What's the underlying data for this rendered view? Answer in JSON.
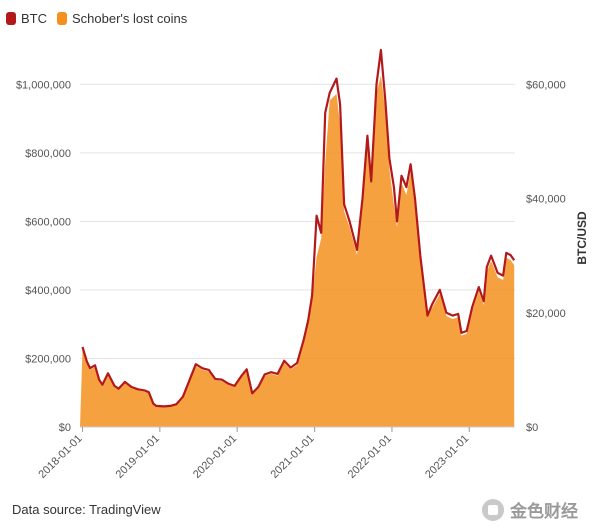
{
  "legend": [
    {
      "label": "BTC",
      "color": "#b3191b"
    },
    {
      "label": "Schober's lost coins",
      "color": "#f5901e"
    }
  ],
  "source": "Data source: TradingView",
  "watermark": "金色财经",
  "chart_data": {
    "type": "area",
    "left_axis": {
      "min": 0,
      "max": 1100000,
      "ticks": [
        "$0",
        "$200,000",
        "$400,000",
        "$600,000",
        "$800,000",
        "$1,000,000"
      ]
    },
    "right_axis": {
      "label": "BTC/USD",
      "min": 0,
      "max": 66000,
      "ticks": [
        "$0",
        "$20,000",
        "$40,000",
        "$60,000"
      ]
    },
    "x_ticks": [
      "2018-01-01",
      "2019-01-01",
      "2020-01-01",
      "2021-01-01",
      "2022-01-01",
      "2023-01-01"
    ],
    "grid": true,
    "legend_position": "top-left",
    "series": [
      {
        "name": "BTC",
        "color": "#b3191b",
        "axis": "right",
        "x": [
          "2018-01-01",
          "2018-01-21",
          "2018-02-05",
          "2018-03-01",
          "2018-03-20",
          "2018-04-05",
          "2018-05-01",
          "2018-06-01",
          "2018-06-20",
          "2018-07-20",
          "2018-08-20",
          "2018-09-20",
          "2018-10-20",
          "2018-11-10",
          "2018-12-01",
          "2018-12-15",
          "2019-01-20",
          "2019-02-20",
          "2019-03-20",
          "2019-04-20",
          "2019-05-20",
          "2019-06-20",
          "2019-07-20",
          "2019-08-20",
          "2019-09-20",
          "2019-10-20",
          "2019-11-20",
          "2019-12-20",
          "2020-01-20",
          "2020-02-15",
          "2020-03-12",
          "2020-04-10",
          "2020-05-10",
          "2020-06-10",
          "2020-07-10",
          "2020-08-10",
          "2020-09-10",
          "2020-10-10",
          "2020-11-10",
          "2020-12-01",
          "2020-12-20",
          "2021-01-10",
          "2021-02-01",
          "2021-02-20",
          "2021-03-13",
          "2021-04-14",
          "2021-05-01",
          "2021-05-20",
          "2021-06-15",
          "2021-07-20",
          "2021-08-15",
          "2021-09-07",
          "2021-09-25",
          "2021-10-20",
          "2021-11-10",
          "2021-12-01",
          "2021-12-20",
          "2022-01-10",
          "2022-01-25",
          "2022-02-15",
          "2022-03-10",
          "2022-03-30",
          "2022-04-20",
          "2022-05-15",
          "2022-06-18",
          "2022-07-10",
          "2022-08-15",
          "2022-09-15",
          "2022-10-15",
          "2022-11-10",
          "2022-11-25",
          "2022-12-20",
          "2023-01-15",
          "2023-02-15",
          "2023-03-10",
          "2023-03-25",
          "2023-04-14",
          "2023-05-15",
          "2023-06-10",
          "2023-06-25",
          "2023-07-15",
          "2023-08-01"
        ],
        "values": [
          14000,
          11500,
          10300,
          10800,
          8300,
          7400,
          9400,
          7200,
          6700,
          7900,
          7000,
          6600,
          6400,
          6100,
          4100,
          3700,
          3600,
          3700,
          4000,
          5300,
          8100,
          11000,
          10300,
          10000,
          8400,
          8300,
          7600,
          7200,
          8900,
          10100,
          5900,
          7000,
          9200,
          9600,
          9300,
          11600,
          10400,
          11200,
          15200,
          18600,
          23000,
          37000,
          34000,
          55000,
          58500,
          61000,
          56500,
          39000,
          36000,
          31000,
          40000,
          51000,
          43000,
          60000,
          66000,
          57000,
          47000,
          42000,
          36000,
          44000,
          42000,
          46000,
          40000,
          30000,
          19500,
          21500,
          24000,
          20000,
          19500,
          19800,
          16500,
          16800,
          21000,
          24500,
          22000,
          28000,
          30000,
          27000,
          26500,
          30500,
          30100,
          29200
        ]
      },
      {
        "name": "Schober's lost coins",
        "color": "#f5901e",
        "axis": "left",
        "x": [
          "2018-01-01",
          "2018-01-21",
          "2018-02-05",
          "2018-03-01",
          "2018-03-20",
          "2018-04-05",
          "2018-05-01",
          "2018-06-01",
          "2018-06-20",
          "2018-07-20",
          "2018-08-20",
          "2018-09-20",
          "2018-10-20",
          "2018-11-10",
          "2018-12-01",
          "2018-12-15",
          "2019-01-20",
          "2019-02-20",
          "2019-03-20",
          "2019-04-20",
          "2019-05-20",
          "2019-06-20",
          "2019-07-20",
          "2019-08-20",
          "2019-09-20",
          "2019-10-20",
          "2019-11-20",
          "2019-12-20",
          "2020-01-20",
          "2020-02-15",
          "2020-03-12",
          "2020-04-10",
          "2020-05-10",
          "2020-06-10",
          "2020-07-10",
          "2020-08-10",
          "2020-09-10",
          "2020-10-10",
          "2020-11-10",
          "2020-12-01",
          "2020-12-20",
          "2021-01-10",
          "2021-02-01",
          "2021-02-20",
          "2021-03-13",
          "2021-04-14",
          "2021-05-01",
          "2021-05-20",
          "2021-06-15",
          "2021-07-20",
          "2021-08-15",
          "2021-09-07",
          "2021-09-25",
          "2021-10-20",
          "2021-11-10",
          "2021-12-01",
          "2021-12-20",
          "2022-01-10",
          "2022-01-25",
          "2022-02-15",
          "2022-03-10",
          "2022-03-30",
          "2022-04-20",
          "2022-05-15",
          "2022-06-18",
          "2022-07-10",
          "2022-08-15",
          "2022-09-15",
          "2022-10-15",
          "2022-11-10",
          "2022-11-25",
          "2022-12-20",
          "2023-01-15",
          "2023-02-15",
          "2023-03-10",
          "2023-03-25",
          "2023-04-14",
          "2023-05-15",
          "2023-06-10",
          "2023-06-25",
          "2023-07-15",
          "2023-08-01"
        ],
        "values": [
          227000,
          186000,
          167000,
          175000,
          134000,
          120000,
          152000,
          116000,
          108000,
          128000,
          113000,
          107000,
          103000,
          98000,
          66000,
          60000,
          58000,
          60000,
          65000,
          86000,
          131000,
          178000,
          167000,
          162000,
          136000,
          134000,
          123000,
          117000,
          144000,
          163000,
          96000,
          113000,
          149000,
          155000,
          150000,
          187000,
          168000,
          181000,
          246000,
          300000,
          372000,
          497000,
          550000,
          770000,
          953000,
          972000,
          882000,
          630000,
          583000,
          502000,
          647000,
          822000,
          723000,
          975000,
          1026000,
          922000,
          753000,
          647000,
          583000,
          712000,
          677000,
          745000,
          647000,
          485000,
          329000,
          348000,
          388000,
          324000,
          315000,
          320000,
          267000,
          272000,
          340000,
          396000,
          356000,
          453000,
          485000,
          437000,
          429000,
          494000,
          487000,
          472000
        ]
      }
    ]
  }
}
